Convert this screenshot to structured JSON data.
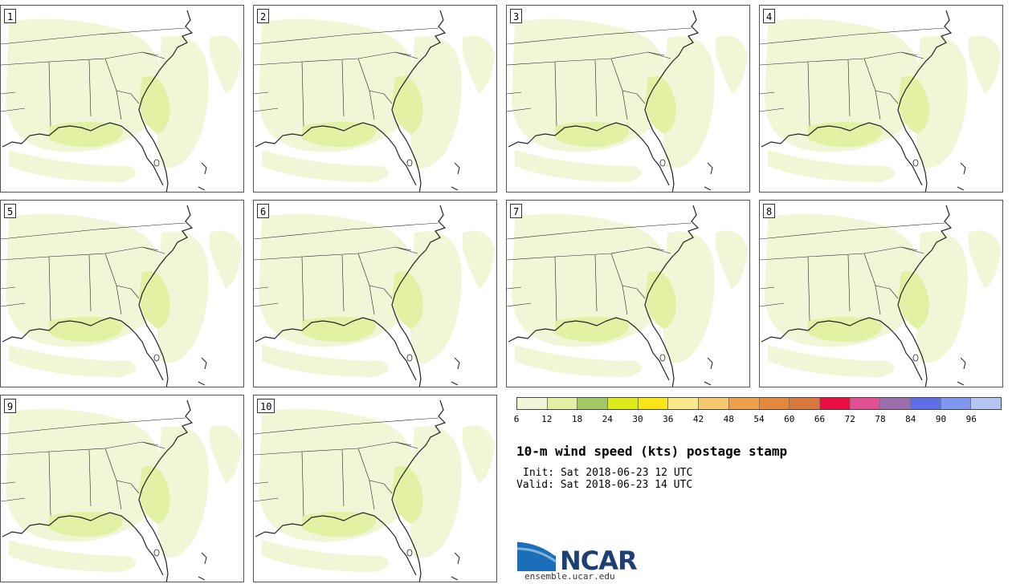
{
  "members": [
    "1",
    "2",
    "3",
    "4",
    "5",
    "6",
    "7",
    "8",
    "9",
    "10"
  ],
  "colorbar": {
    "colors": [
      "#f1f6d7",
      "#e3f1a4",
      "#a2c864",
      "#dcea1a",
      "#f8e61a",
      "#fbe88a",
      "#f4c86c",
      "#eca04c",
      "#e3883d",
      "#d9783d",
      "#e8103e",
      "#e34f93",
      "#9b6eab",
      "#5e6ee9",
      "#7f97ee",
      "#b3c6f4"
    ],
    "ticks": [
      "6",
      "12",
      "18",
      "24",
      "30",
      "36",
      "42",
      "48",
      "54",
      "60",
      "66",
      "72",
      "78",
      "84",
      "90",
      "96"
    ]
  },
  "title": "10-m wind speed (kts) postage stamp",
  "init": "Init: Sat 2018-06-23 12 UTC",
  "valid": "Valid: Sat 2018-06-23 14 UTC",
  "logo_text": "NCAR",
  "site": "ensemble.ucar.edu"
}
